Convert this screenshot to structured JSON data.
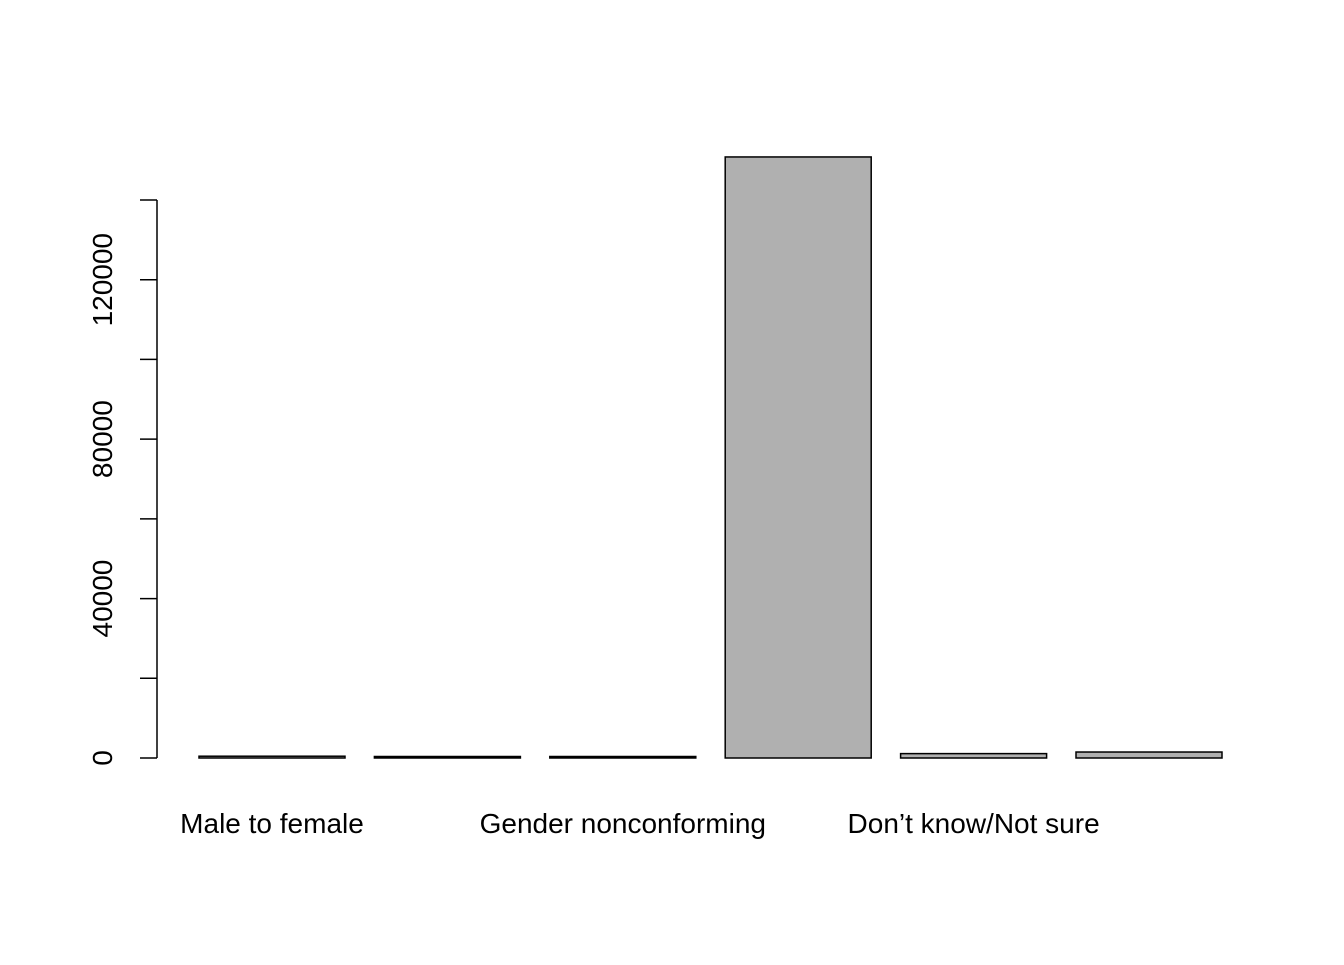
{
  "chart_data": {
    "type": "bar",
    "title": "",
    "xlabel": "",
    "ylabel": "",
    "categories": [
      "Male to female",
      "",
      "Gender nonconforming",
      "",
      "Don’t know/Not sure",
      ""
    ],
    "values": [
      450,
      150,
      80,
      150800,
      1100,
      1500
    ],
    "ylim": [
      0,
      150800
    ],
    "y_ticks": [
      0,
      20000,
      40000,
      60000,
      80000,
      100000,
      120000,
      140000
    ],
    "y_tick_labels": [
      "0",
      "",
      "40000",
      "",
      "80000",
      "",
      "120000",
      ""
    ],
    "bar_fill": "#b0b0b0",
    "bar_stroke": "#000000",
    "grid": false,
    "legend": "none"
  }
}
